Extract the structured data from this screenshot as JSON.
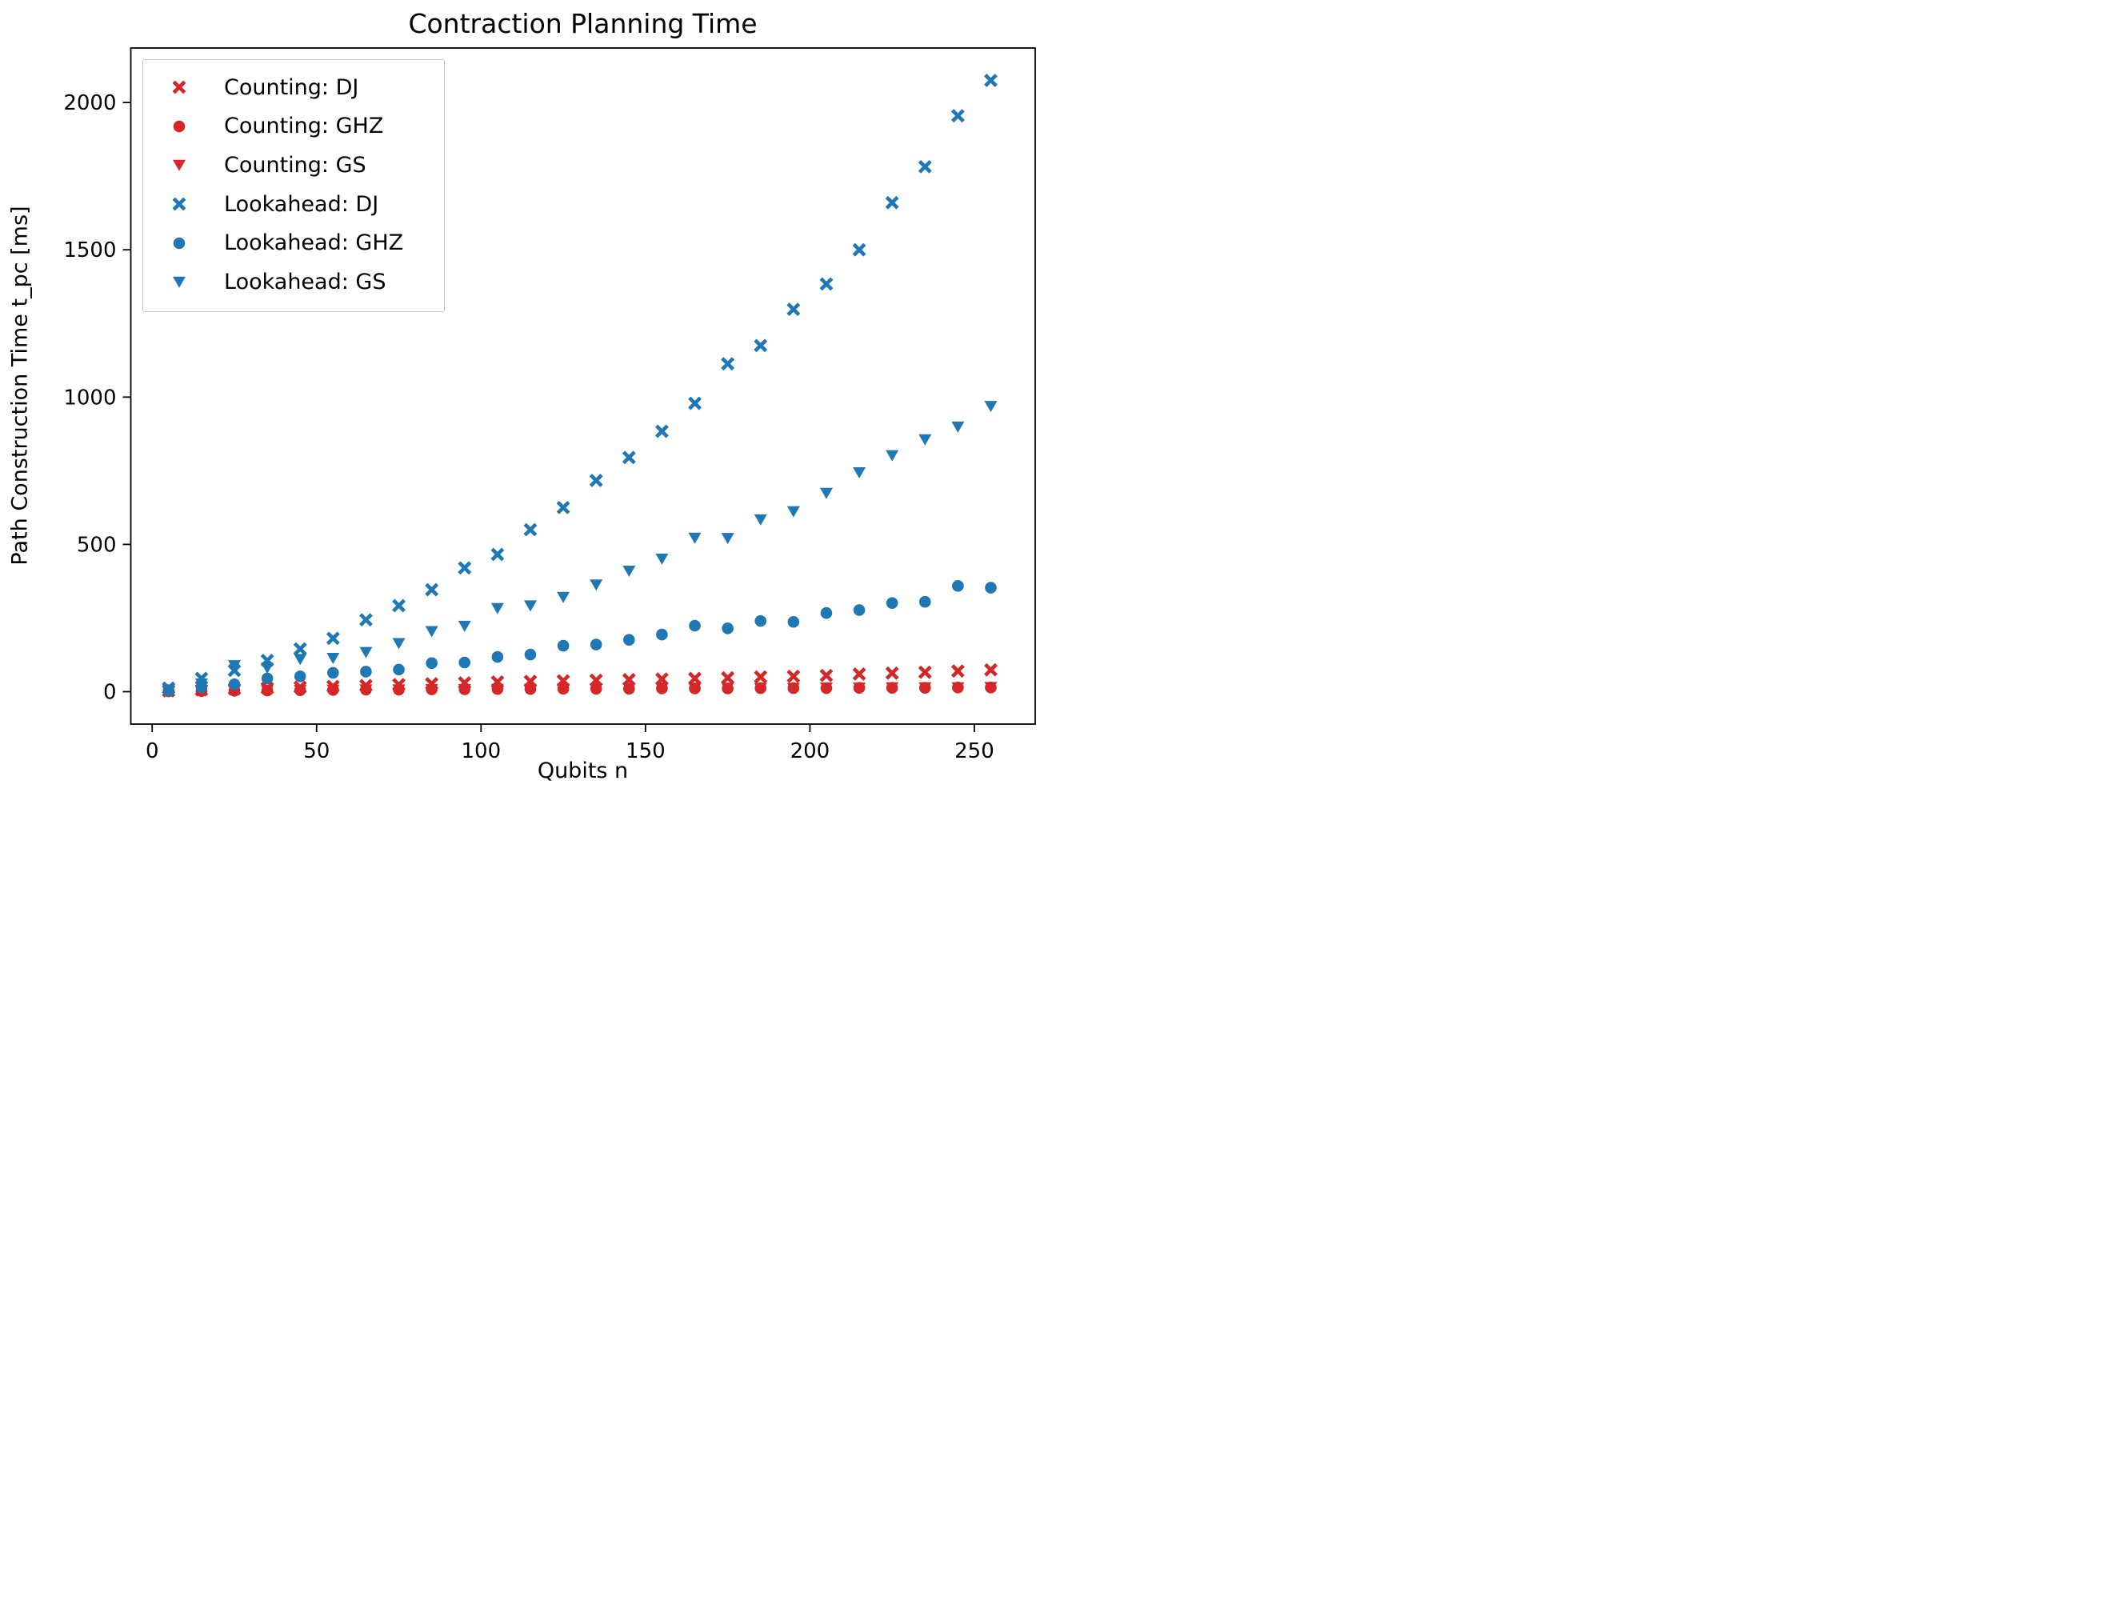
{
  "figure": {
    "title": "Contraction Planning Time",
    "xlabel": "Qubits n",
    "ylabel": "Path Construction Time t_pc [ms]"
  },
  "colors": {
    "counting": "#d62728",
    "lookahead": "#1f77b4",
    "frame": "#000000",
    "legend_border": "#c9c9c9",
    "background": "#ffffff"
  },
  "chart_data": {
    "type": "scatter",
    "title": "Contraction Planning Time",
    "xlabel": "Qubits n",
    "ylabel": "Path Construction Time t_pc [ms]",
    "xlim": [
      -6.5,
      268.5
    ],
    "ylim": [
      -110,
      2185
    ],
    "x_ticks": [
      0,
      50,
      100,
      150,
      200,
      250
    ],
    "y_ticks": [
      0,
      500,
      1000,
      1500,
      2000
    ],
    "grid": false,
    "legend_position": "upper left",
    "x": [
      5,
      15,
      25,
      35,
      45,
      55,
      65,
      75,
      85,
      95,
      105,
      115,
      125,
      135,
      145,
      155,
      165,
      175,
      185,
      195,
      205,
      215,
      225,
      235,
      245,
      255
    ],
    "series": [
      {
        "id": "counting-dj",
        "name": "Counting: DJ",
        "marker": "x",
        "color": "#d62728",
        "values": [
          3,
          6,
          9,
          12,
          15,
          18,
          21,
          24,
          27,
          30,
          33,
          35,
          37,
          39,
          41,
          43,
          45,
          47,
          50,
          52,
          55,
          60,
          63,
          66,
          70,
          74
        ]
      },
      {
        "id": "counting-ghz",
        "name": "Counting: GHZ",
        "marker": "circle",
        "color": "#d62728",
        "values": [
          1,
          2,
          3,
          4,
          5,
          6,
          7,
          7,
          8,
          8,
          9,
          9,
          10,
          10,
          10,
          11,
          11,
          11,
          12,
          12,
          12,
          13,
          13,
          13,
          14,
          14
        ]
      },
      {
        "id": "counting-gs",
        "name": "Counting: GS",
        "marker": "triangle-down",
        "color": "#d62728",
        "values": [
          2,
          3,
          4,
          5,
          6,
          7,
          8,
          8,
          9,
          9,
          10,
          10,
          11,
          11,
          12,
          12,
          12,
          13,
          13,
          13,
          14,
          14,
          15,
          15,
          15,
          16
        ]
      },
      {
        "id": "lookahead-dj",
        "name": "Lookahead: DJ",
        "marker": "x",
        "color": "#1f77b4",
        "values": [
          12,
          45,
          72,
          106,
          145,
          181,
          244,
          292,
          346,
          420,
          466,
          550,
          625,
          717,
          795,
          884,
          979,
          1113,
          1175,
          1298,
          1384,
          1500,
          1660,
          1782,
          1955,
          2075
        ]
      },
      {
        "id": "lookahead-ghz",
        "name": "Lookahead: GHZ",
        "marker": "circle",
        "color": "#1f77b4",
        "values": [
          4,
          15,
          25,
          45,
          52,
          64,
          68,
          75,
          97,
          99,
          118,
          126,
          156,
          160,
          176,
          194,
          224,
          215,
          240,
          237,
          267,
          277,
          301,
          305,
          359,
          353
        ]
      },
      {
        "id": "lookahead-gs",
        "name": "Lookahead: GS",
        "marker": "triangle-down",
        "color": "#1f77b4",
        "values": [
          8,
          28,
          90,
          82,
          111,
          115,
          135,
          165,
          206,
          224,
          284,
          293,
          322,
          364,
          411,
          452,
          523,
          522,
          585,
          613,
          675,
          745,
          803,
          857,
          900,
          970
        ]
      }
    ]
  }
}
